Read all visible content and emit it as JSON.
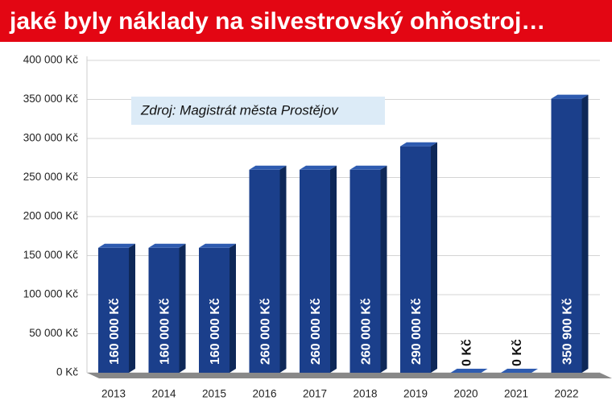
{
  "chart_data": {
    "type": "bar",
    "title": "jaké byly náklady na silvestrovský ohňostroj…",
    "annotation": "Zdroj: Magistrát města Prostějov",
    "categories": [
      "2013",
      "2014",
      "2015",
      "2016",
      "2017",
      "2018",
      "2019",
      "2020",
      "2021",
      "2022"
    ],
    "values": [
      160000,
      160000,
      160000,
      260000,
      260000,
      260000,
      290000,
      0,
      0,
      350900
    ],
    "value_labels": [
      "160 000 Kč",
      "160 000 Kč",
      "160 000 Kč",
      "260 000 Kč",
      "260 000 Kč",
      "260 000 Kč",
      "290 000 Kč",
      "0 Kč",
      "0 Kč",
      "350 900 Kč"
    ],
    "color": "#1b3f8b",
    "ylim": [
      0,
      400000
    ],
    "yticks": [
      {
        "value": 0,
        "label": "0 Kč"
      },
      {
        "value": 50000,
        "label": "50 000 Kč"
      },
      {
        "value": 100000,
        "label": "100 000 Kč"
      },
      {
        "value": 150000,
        "label": "150 000 Kč"
      },
      {
        "value": 200000,
        "label": "200 000 Kč"
      },
      {
        "value": 250000,
        "label": "250 000 Kč"
      },
      {
        "value": 300000,
        "label": "300 000 Kč"
      },
      {
        "value": 350000,
        "label": "350 000 Kč"
      },
      {
        "value": 400000,
        "label": "400 000 Kč"
      }
    ],
    "grid": true
  }
}
